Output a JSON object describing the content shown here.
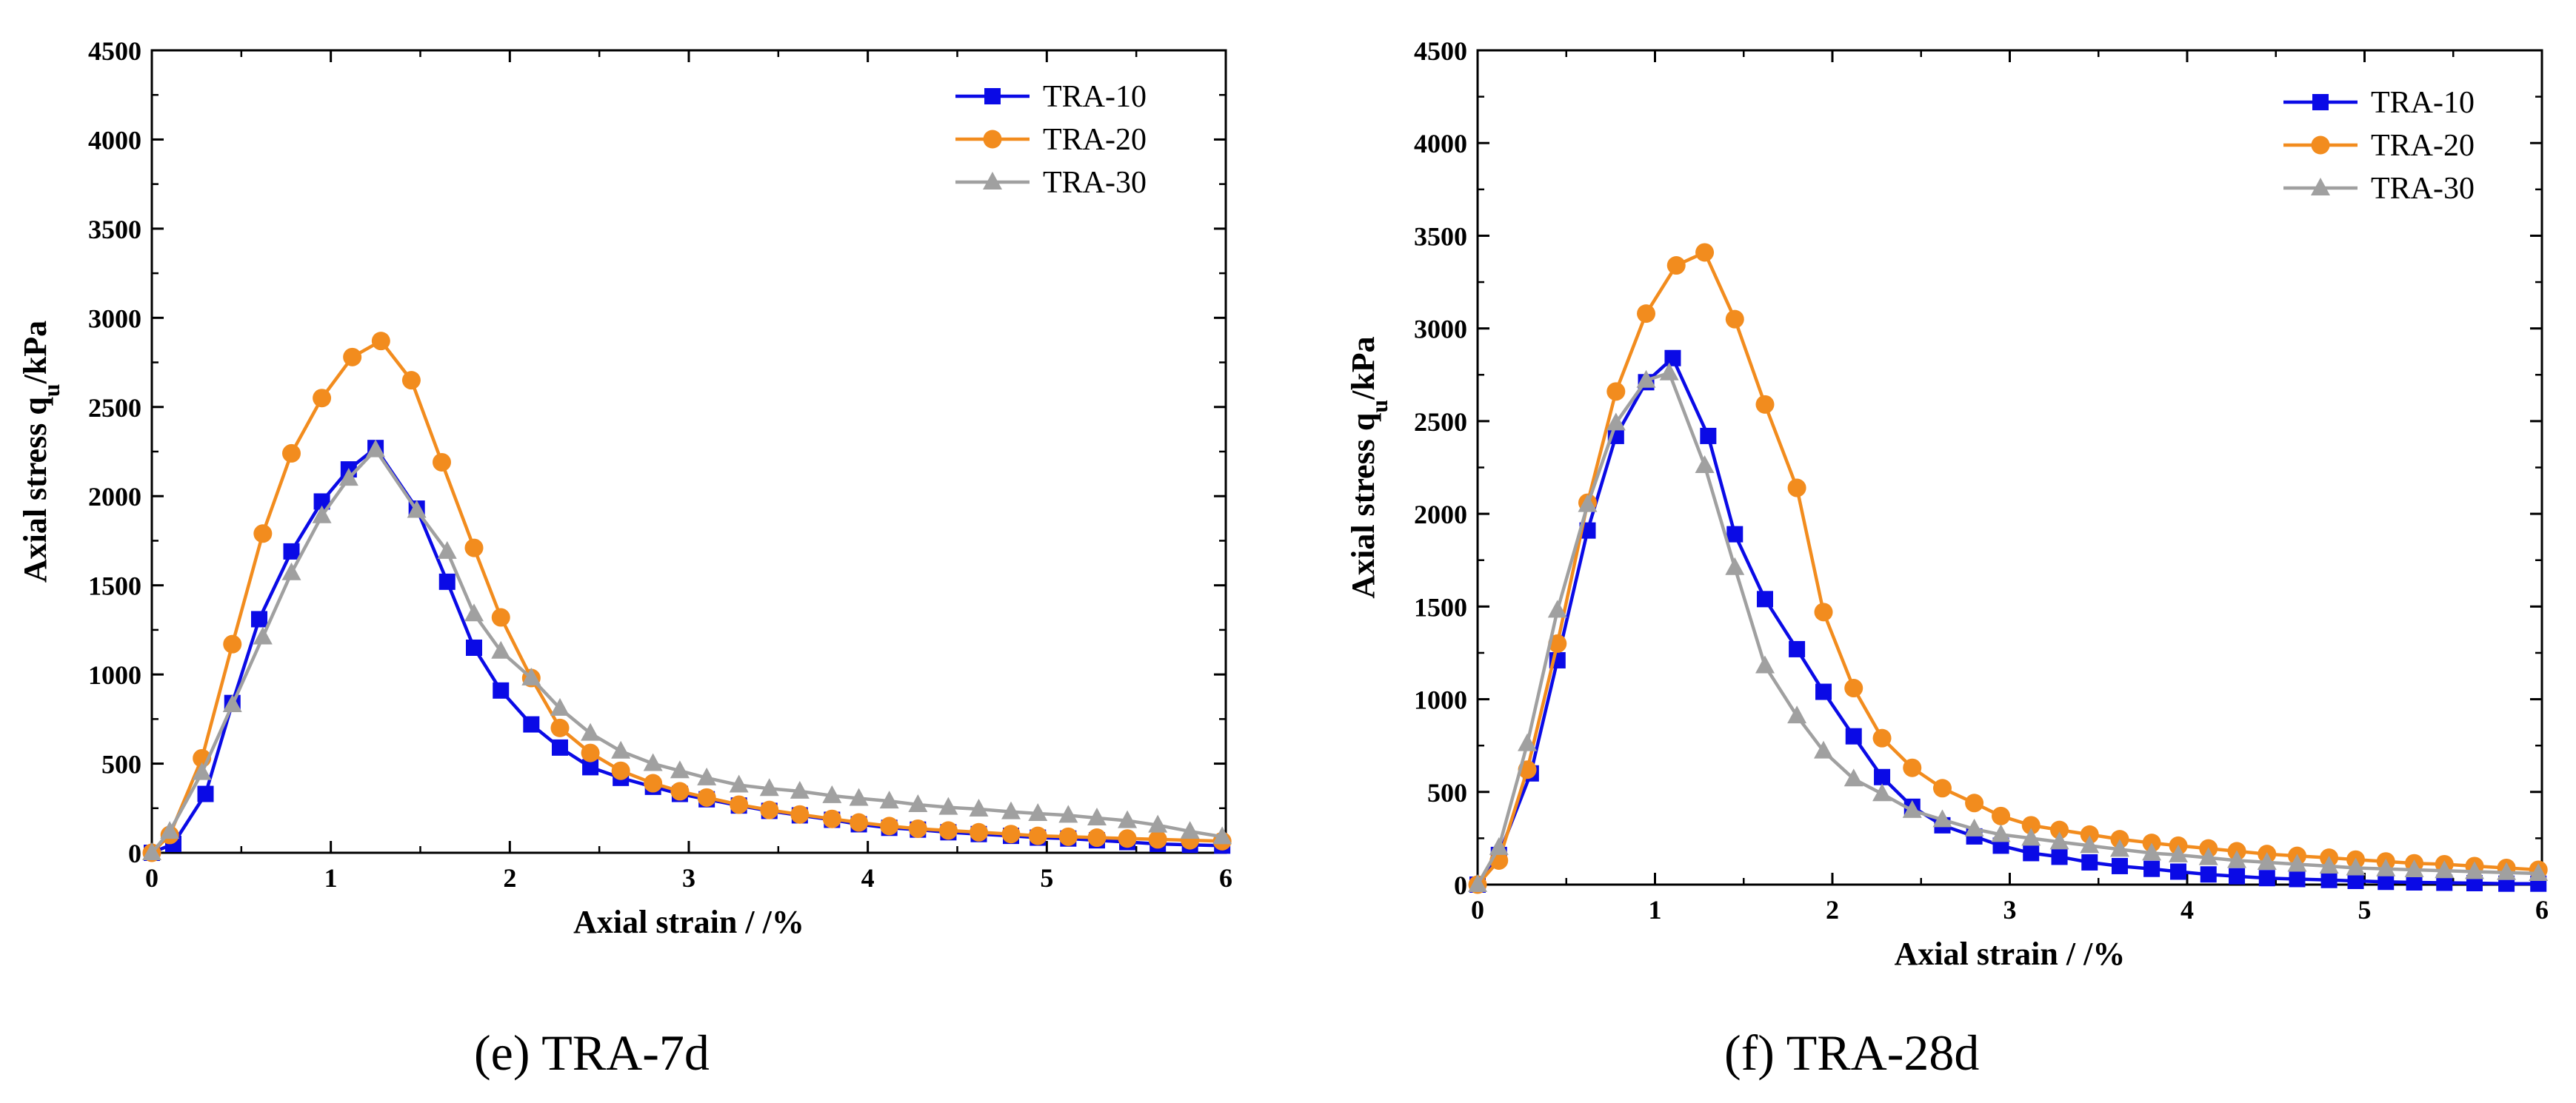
{
  "chart_data": [
    {
      "type": "line",
      "caption": "(e)   TRA-7d",
      "xlabel": "Axial strain /  /%",
      "ylabel_main": "Axial stress q",
      "ylabel_sub": "u",
      "ylabel_tail": "/kPa",
      "xlim": [
        0,
        6
      ],
      "ylim": [
        0,
        4500
      ],
      "xticks": [
        0,
        1,
        2,
        3,
        4,
        5,
        6
      ],
      "yticks": [
        0,
        500,
        1000,
        1500,
        2000,
        2500,
        3000,
        3500,
        4000,
        4500
      ],
      "legend_position": "top-right",
      "series": [
        {
          "name": "TRA-10",
          "color": "#0a0ae6",
          "marker": "square",
          "x": [
            0.0,
            0.12,
            0.3,
            0.45,
            0.6,
            0.78,
            0.95,
            1.1,
            1.25,
            1.48,
            1.65,
            1.8,
            1.95,
            2.12,
            2.28,
            2.45,
            2.62,
            2.8,
            2.95,
            3.1,
            3.28,
            3.45,
            3.62,
            3.8,
            3.95,
            4.12,
            4.28,
            4.45,
            4.62,
            4.8,
            4.95,
            5.12,
            5.28,
            5.45,
            5.62,
            5.8,
            5.98
          ],
          "y": [
            0,
            50,
            330,
            840,
            1310,
            1690,
            1970,
            2150,
            2270,
            1930,
            1520,
            1150,
            910,
            720,
            590,
            480,
            420,
            370,
            330,
            300,
            265,
            235,
            210,
            185,
            160,
            140,
            130,
            115,
            105,
            95,
            85,
            80,
            70,
            60,
            50,
            45,
            40
          ]
        },
        {
          "name": "TRA-20",
          "color": "#f28c1e",
          "marker": "circle",
          "x": [
            0.0,
            0.1,
            0.28,
            0.45,
            0.62,
            0.78,
            0.95,
            1.12,
            1.28,
            1.45,
            1.62,
            1.8,
            1.95,
            2.12,
            2.28,
            2.45,
            2.62,
            2.8,
            2.95,
            3.1,
            3.28,
            3.45,
            3.62,
            3.8,
            3.95,
            4.12,
            4.28,
            4.45,
            4.62,
            4.8,
            4.95,
            5.12,
            5.28,
            5.45,
            5.62,
            5.8,
            5.98
          ],
          "y": [
            0,
            100,
            530,
            1170,
            1790,
            2240,
            2550,
            2780,
            2870,
            2650,
            2190,
            1710,
            1320,
            980,
            700,
            560,
            460,
            390,
            345,
            310,
            270,
            240,
            215,
            190,
            170,
            150,
            135,
            125,
            115,
            105,
            95,
            90,
            85,
            80,
            75,
            70,
            65
          ]
        },
        {
          "name": "TRA-30",
          "color": "#a0a0a0",
          "marker": "triangle",
          "x": [
            0.0,
            0.1,
            0.28,
            0.45,
            0.62,
            0.78,
            0.95,
            1.1,
            1.25,
            1.48,
            1.65,
            1.8,
            1.95,
            2.12,
            2.28,
            2.45,
            2.62,
            2.8,
            2.95,
            3.1,
            3.28,
            3.45,
            3.62,
            3.8,
            3.95,
            4.12,
            4.28,
            4.45,
            4.62,
            4.8,
            4.95,
            5.12,
            5.28,
            5.45,
            5.62,
            5.8,
            5.98
          ],
          "y": [
            0,
            120,
            450,
            830,
            1210,
            1570,
            1890,
            2100,
            2260,
            1920,
            1690,
            1340,
            1130,
            980,
            810,
            670,
            570,
            500,
            460,
            420,
            380,
            360,
            345,
            320,
            305,
            290,
            270,
            255,
            245,
            230,
            220,
            210,
            195,
            180,
            155,
            120,
            90
          ]
        }
      ]
    },
    {
      "type": "line",
      "caption": "(f)   TRA-28d",
      "xlabel": "Axial strain /  /%",
      "ylabel_main": "Axial stress q",
      "ylabel_sub": "u",
      "ylabel_tail": "/kPa",
      "xlim": [
        0,
        6
      ],
      "ylim": [
        0,
        4500
      ],
      "xticks": [
        0,
        1,
        2,
        3,
        4,
        5,
        6
      ],
      "yticks": [
        0,
        500,
        1000,
        1500,
        2000,
        2500,
        3000,
        3500,
        4000,
        4500
      ],
      "legend_position": "top-right",
      "series": [
        {
          "name": "TRA-10",
          "color": "#0a0ae6",
          "marker": "square",
          "x": [
            0.0,
            0.12,
            0.3,
            0.45,
            0.62,
            0.78,
            0.95,
            1.1,
            1.3,
            1.45,
            1.62,
            1.8,
            1.95,
            2.12,
            2.28,
            2.45,
            2.62,
            2.8,
            2.95,
            3.12,
            3.28,
            3.45,
            3.62,
            3.8,
            3.95,
            4.12,
            4.28,
            4.45,
            4.62,
            4.8,
            4.95,
            5.12,
            5.28,
            5.45,
            5.62,
            5.8,
            5.98
          ],
          "y": [
            0,
            160,
            600,
            1210,
            1910,
            2420,
            2710,
            2840,
            2420,
            1890,
            1540,
            1270,
            1040,
            800,
            580,
            420,
            320,
            260,
            210,
            170,
            150,
            120,
            100,
            85,
            70,
            55,
            45,
            35,
            30,
            25,
            20,
            15,
            12,
            10,
            8,
            5,
            5
          ]
        },
        {
          "name": "TRA-20",
          "color": "#f28c1e",
          "marker": "circle",
          "x": [
            0.0,
            0.12,
            0.28,
            0.45,
            0.62,
            0.78,
            0.95,
            1.12,
            1.28,
            1.45,
            1.62,
            1.8,
            1.95,
            2.12,
            2.28,
            2.45,
            2.62,
            2.8,
            2.95,
            3.12,
            3.28,
            3.45,
            3.62,
            3.8,
            3.95,
            4.12,
            4.28,
            4.45,
            4.62,
            4.8,
            4.95,
            5.12,
            5.28,
            5.45,
            5.62,
            5.8,
            5.98
          ],
          "y": [
            0,
            130,
            620,
            1300,
            2060,
            2660,
            3080,
            3340,
            3410,
            3050,
            2590,
            2140,
            1470,
            1060,
            790,
            630,
            520,
            440,
            370,
            320,
            295,
            270,
            245,
            225,
            210,
            195,
            180,
            165,
            155,
            145,
            135,
            125,
            115,
            110,
            100,
            90,
            80
          ]
        },
        {
          "name": "TRA-30",
          "color": "#a0a0a0",
          "marker": "triangle",
          "x": [
            0.0,
            0.12,
            0.28,
            0.45,
            0.62,
            0.78,
            0.95,
            1.08,
            1.28,
            1.45,
            1.62,
            1.8,
            1.95,
            2.12,
            2.28,
            2.45,
            2.62,
            2.8,
            2.95,
            3.12,
            3.28,
            3.45,
            3.62,
            3.8,
            3.95,
            4.12,
            4.28,
            4.45,
            4.62,
            4.8,
            4.95,
            5.12,
            5.28,
            5.45,
            5.62,
            5.8,
            5.98
          ],
          "y": [
            0,
            200,
            760,
            1480,
            2050,
            2490,
            2720,
            2760,
            2260,
            1710,
            1180,
            910,
            720,
            570,
            490,
            400,
            350,
            300,
            270,
            250,
            230,
            210,
            190,
            170,
            160,
            145,
            130,
            120,
            110,
            100,
            90,
            85,
            80,
            75,
            70,
            65,
            60
          ]
        }
      ]
    }
  ]
}
